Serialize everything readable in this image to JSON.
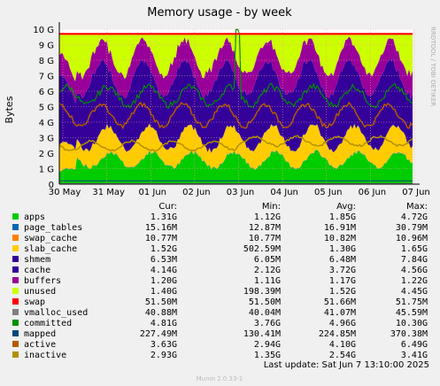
{
  "chart_data": {
    "type": "area",
    "title": "Memory usage - by week",
    "ylabel": "Bytes",
    "watermark": "RRDTOOL / TOBI OETIKER",
    "footer": "Munin 2.0.33-1",
    "last_update": "Last update:  Sat Jun  7 13:10:00 2025",
    "ylim": [
      0,
      10
    ],
    "yticks": [
      "0",
      "1 G",
      "2 G",
      "3 G",
      "4 G",
      "5 G",
      "6 G",
      "7 G",
      "8 G",
      "9 G",
      "10 G"
    ],
    "x_ticks": [
      "30 May",
      "31 May",
      "01 Jun",
      "02 Jun",
      "03 Jun",
      "04 Jun",
      "05 Jun",
      "06 Jun",
      "07 Jun"
    ],
    "columns": [
      "Cur:",
      "Min:",
      "Avg:",
      "Max:"
    ],
    "grid": true,
    "legend_position": "bottom",
    "total_memory_gb": 9.7,
    "series": [
      {
        "name": "apps",
        "color": "#00cc00",
        "cur": "1.31G",
        "min": "1.12G",
        "avg": "1.85G",
        "max": "4.72G",
        "approx_gb": 1.4
      },
      {
        "name": "page_tables",
        "color": "#0066b3",
        "cur": "15.16M",
        "min": "12.87M",
        "avg": "16.91M",
        "max": "30.79M",
        "approx_gb": 0.02
      },
      {
        "name": "swap_cache",
        "color": "#ff8000",
        "cur": "10.77M",
        "min": "10.77M",
        "avg": "10.82M",
        "max": "10.96M",
        "approx_gb": 0.01
      },
      {
        "name": "slab_cache",
        "color": "#ffcc00",
        "cur": "1.52G",
        "min": "502.59M",
        "avg": "1.30G",
        "max": "1.65G",
        "approx_gb": 1.3
      },
      {
        "name": "shmem",
        "color": "#330099",
        "cur": "6.53M",
        "min": "6.05M",
        "avg": "6.48M",
        "max": "7.84G",
        "approx_gb": 0.01
      },
      {
        "name": "cache",
        "color": "#330099",
        "cur": "4.14G",
        "min": "2.12G",
        "avg": "3.72G",
        "max": "4.56G",
        "approx_gb": 3.7
      },
      {
        "name": "buffers",
        "color": "#990099",
        "cur": "1.20G",
        "min": "1.11G",
        "avg": "1.17G",
        "max": "1.22G",
        "approx_gb": 1.2
      },
      {
        "name": "unused",
        "color": "#ccff00",
        "cur": "1.40G",
        "min": "198.39M",
        "avg": "1.52G",
        "max": "4.45G",
        "approx_gb": 1.5
      },
      {
        "name": "swap",
        "color": "#ff0000",
        "cur": "51.50M",
        "min": "51.50M",
        "avg": "51.66M",
        "max": "51.75M",
        "approx_gb": 0.05
      },
      {
        "name": "vmalloc_used",
        "color": "#808080",
        "cur": "40.88M",
        "min": "40.04M",
        "avg": "41.07M",
        "max": "45.59M"
      },
      {
        "name": "committed",
        "color": "#008f00",
        "cur": "4.81G",
        "min": "3.76G",
        "avg": "4.96G",
        "max": "10.30G"
      },
      {
        "name": "mapped",
        "color": "#00487d",
        "cur": "227.49M",
        "min": "130.41M",
        "avg": "224.85M",
        "max": "370.38M"
      },
      {
        "name": "active",
        "color": "#b35a00",
        "cur": "3.63G",
        "min": "2.94G",
        "avg": "4.10G",
        "max": "6.49G"
      },
      {
        "name": "inactive",
        "color": "#b38f00",
        "cur": "2.93G",
        "min": "1.35G",
        "avg": "2.54G",
        "max": "3.41G"
      }
    ]
  }
}
